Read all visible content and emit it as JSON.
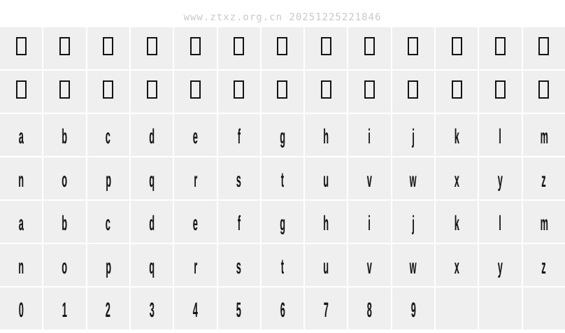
{
  "watermark": {
    "text": "www.ztxz.org.cn 20251225221846"
  },
  "colors": {
    "page_bg": "#ffffff",
    "cell_bg": "#efefef",
    "gap": "#ffffff",
    "glyph": "#151515",
    "watermark": "#c9c9c9"
  },
  "glyph_grid": {
    "columns": 13,
    "rows": [
      {
        "name": "notdef-row-1",
        "cells": [
          "□",
          "□",
          "□",
          "□",
          "□",
          "□",
          "□",
          "□",
          "□",
          "□",
          "□",
          "□",
          "□"
        ]
      },
      {
        "name": "notdef-row-2",
        "cells": [
          "□",
          "□",
          "□",
          "□",
          "□",
          "□",
          "□",
          "□",
          "□",
          "□",
          "□",
          "□",
          "□"
        ]
      },
      {
        "name": "letters-a-m",
        "cells": [
          "a",
          "b",
          "c",
          "d",
          "e",
          "f",
          "g",
          "h",
          "i",
          "j",
          "k",
          "l",
          "m"
        ]
      },
      {
        "name": "letters-n-z",
        "cells": [
          "n",
          "o",
          "p",
          "q",
          "r",
          "s",
          "t",
          "u",
          "v",
          "w",
          "x",
          "y",
          "z"
        ]
      },
      {
        "name": "letters-a-m-repeat",
        "cells": [
          "a",
          "b",
          "c",
          "d",
          "e",
          "f",
          "g",
          "h",
          "i",
          "j",
          "k",
          "l",
          "m"
        ]
      },
      {
        "name": "letters-n-z-repeat",
        "cells": [
          "n",
          "o",
          "p",
          "q",
          "r",
          "s",
          "t",
          "u",
          "v",
          "w",
          "x",
          "y",
          "z"
        ]
      },
      {
        "name": "digits",
        "cells": [
          "0",
          "1",
          "2",
          "3",
          "4",
          "5",
          "6",
          "7",
          "8",
          "9",
          "",
          "",
          ""
        ]
      }
    ]
  }
}
